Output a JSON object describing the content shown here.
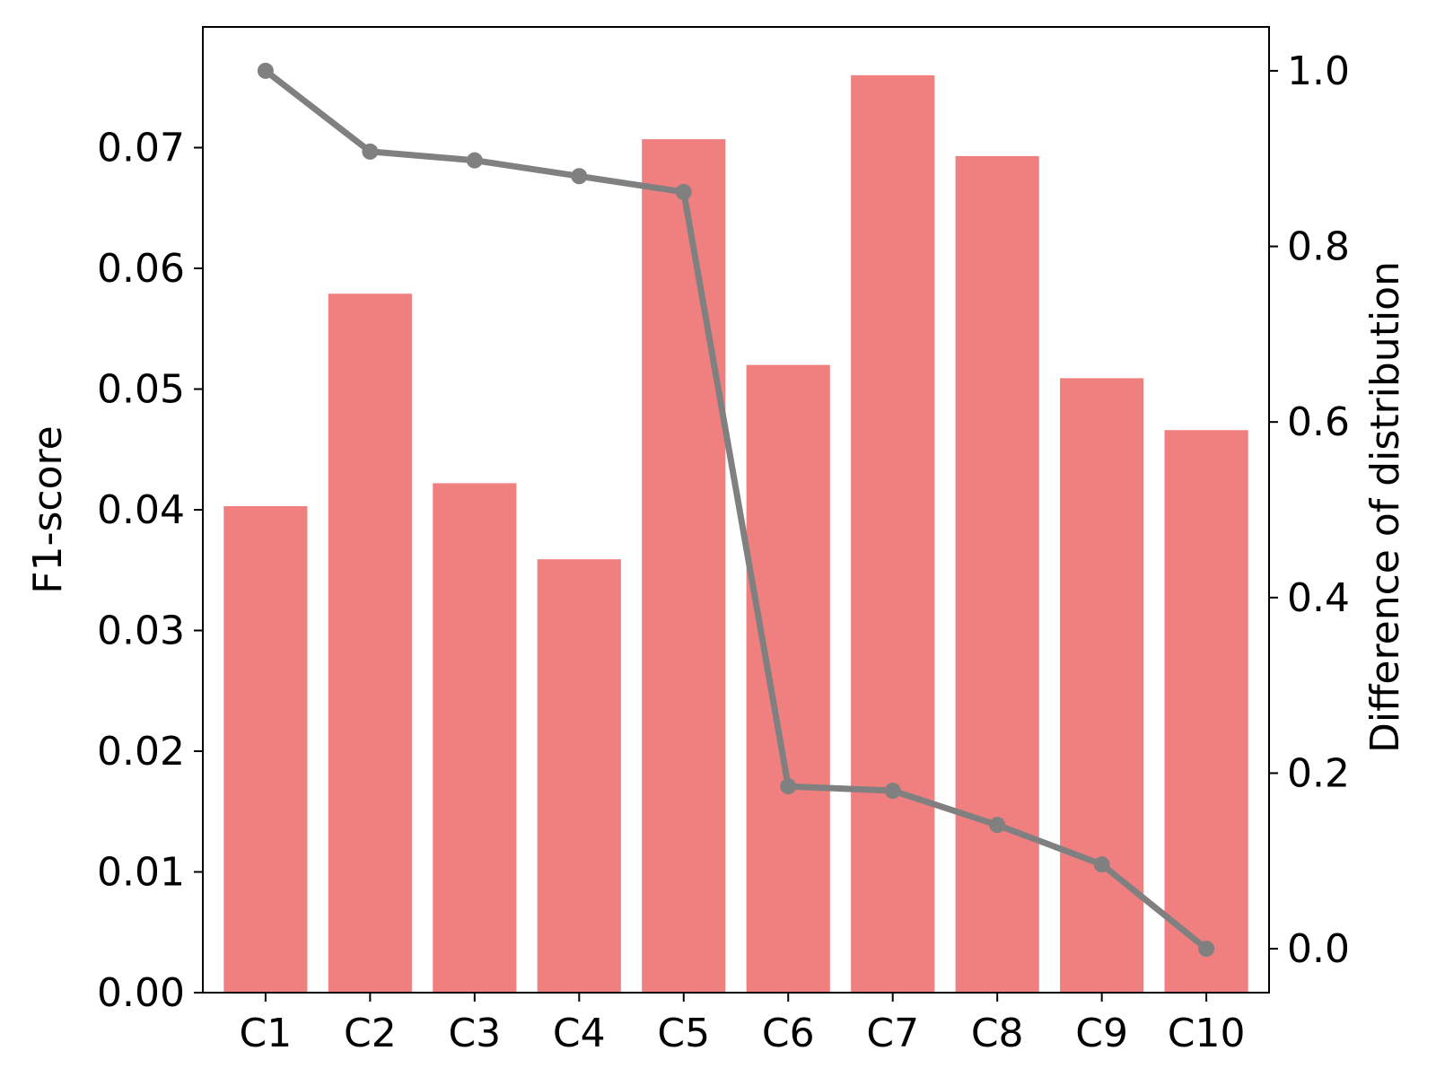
{
  "chart_data": {
    "type": "bar",
    "title": "",
    "categories": [
      "C1",
      "C2",
      "C3",
      "C4",
      "C5",
      "C6",
      "C7",
      "C8",
      "C9",
      "C10"
    ],
    "series": [
      {
        "axis": "left",
        "type": "bar",
        "color": "#f08080",
        "values": [
          0.0403,
          0.0579,
          0.0422,
          0.0359,
          0.0707,
          0.052,
          0.076,
          0.0693,
          0.0509,
          0.0466
        ]
      },
      {
        "axis": "right",
        "type": "line",
        "color": "#808080",
        "marker": "circle",
        "values": [
          1.0,
          0.908,
          0.898,
          0.88,
          0.862,
          0.185,
          0.18,
          0.141,
          0.096,
          0.0
        ]
      }
    ],
    "ylabel": "F1-score",
    "y2label": "Difference of distribution",
    "ylim": [
      0,
      0.08
    ],
    "y2lim": [
      -0.05,
      1.05
    ],
    "yticks": [
      "0.00",
      "0.01",
      "0.02",
      "0.03",
      "0.04",
      "0.05",
      "0.06",
      "0.07"
    ],
    "y2ticks": [
      "0.0",
      "0.2",
      "0.4",
      "0.6",
      "0.8",
      "1.0"
    ],
    "grid": false,
    "legend": "none"
  }
}
